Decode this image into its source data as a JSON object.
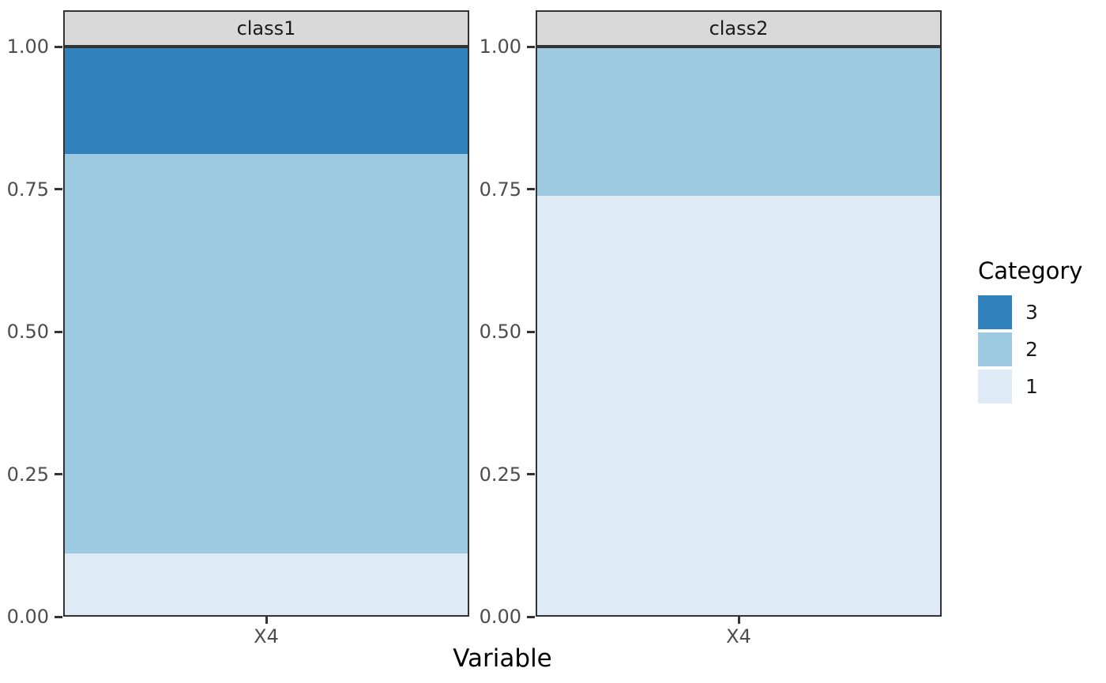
{
  "chart_data": {
    "type": "bar",
    "variant": "proportional-stacked-bar-faceted",
    "title": "",
    "xlabel": "Variable",
    "ylabel": "",
    "ylim": [
      0,
      1
    ],
    "grid": false,
    "y_tick_labels": [
      "1.00",
      "0.75",
      "0.50",
      "0.25",
      "0.00"
    ],
    "y_tick_values": [
      1.0,
      0.75,
      0.5,
      0.25,
      0.0
    ],
    "x_categories": [
      "X4"
    ],
    "legend": {
      "title": "Category",
      "position": "right",
      "entries": [
        {
          "label": "3",
          "color": "#3182BD"
        },
        {
          "label": "2",
          "color": "#9ECAE1"
        },
        {
          "label": "1",
          "color": "#DEEBF7"
        }
      ]
    },
    "facets": [
      {
        "label": "class1",
        "x": "X4",
        "stack_top_to_bottom": [
          {
            "category": "3",
            "value": 0.187
          },
          {
            "category": "2",
            "value": 0.705
          },
          {
            "category": "1",
            "value": 0.108
          }
        ]
      },
      {
        "label": "class2",
        "x": "X4",
        "stack_top_to_bottom": [
          {
            "category": "3",
            "value": 0.0
          },
          {
            "category": "2",
            "value": 0.26
          },
          {
            "category": "1",
            "value": 0.74
          }
        ]
      }
    ]
  },
  "colors": {
    "category_3": "#3182BD",
    "category_2": "#9ECAE1",
    "category_1": "#DEEBF7",
    "strip_fill": "#D9D9D9",
    "border": "#333333",
    "tick_text": "#4D4D4D",
    "title_text": "#000000",
    "background": "#FFFFFF"
  },
  "layout_note": ""
}
